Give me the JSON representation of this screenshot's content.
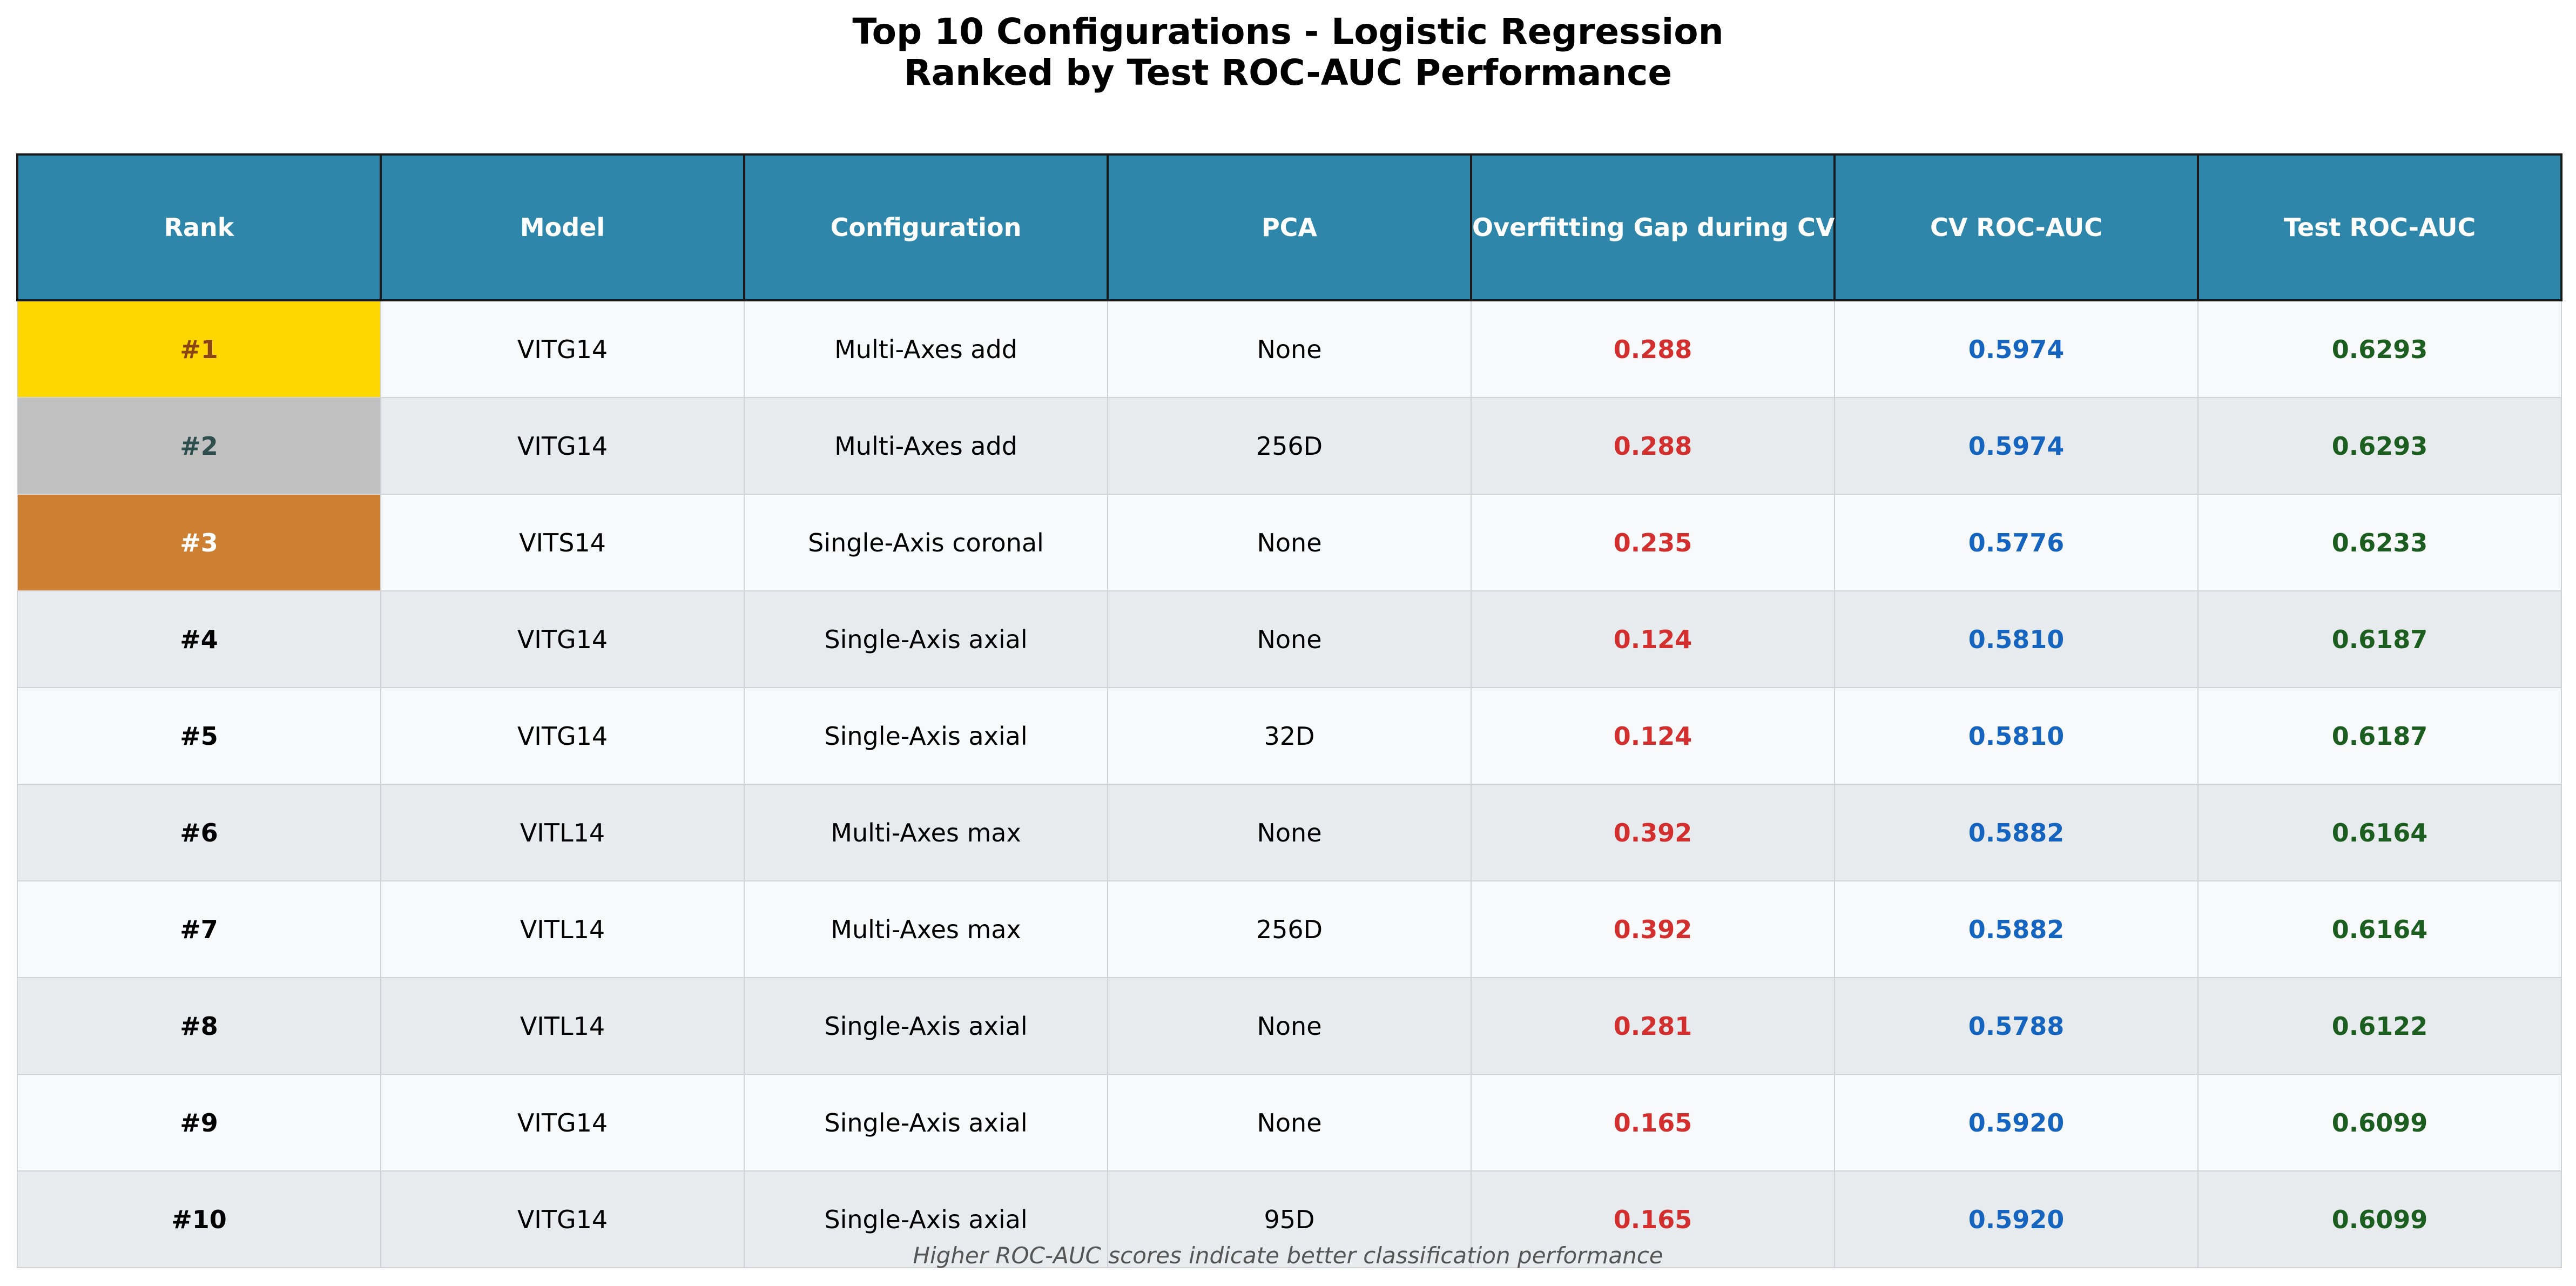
{
  "title": {
    "line1": "Top 10 Configurations - Logistic Regression",
    "line2": "Ranked by Test ROC-AUC Performance"
  },
  "colors": {
    "header_bg": "#2e86ab",
    "header_text": "#ffffff",
    "row_odd": "#f8f9fa",
    "row_even": "#e8ebed",
    "rank_gold": "#ffd700",
    "rank_gold_text": "#8b4513",
    "rank_silver": "#c0c0c0",
    "rank_silver_text": "#2f4f4f",
    "rank_bronze": "#cd7f32",
    "rank_bronze_text": "#ffffff",
    "gap_text": "#d32f2f",
    "cv_text": "#1565c0",
    "test_text": "#1b5e20"
  },
  "footnote": "Higher ROC-AUC scores indicate better classification performance",
  "chart_data": {
    "type": "table",
    "columns": [
      "Rank",
      "Model",
      "Configuration",
      "PCA",
      "Overfitting Gap during CV",
      "CV ROC-AUC",
      "Test ROC-AUC"
    ],
    "rows": [
      {
        "rank": "#1",
        "model": "VITG14",
        "configuration": "Multi-Axes add",
        "pca": "None",
        "gap": "0.288",
        "cv": "0.5974",
        "test": "0.6293"
      },
      {
        "rank": "#2",
        "model": "VITG14",
        "configuration": "Multi-Axes add",
        "pca": "256D",
        "gap": "0.288",
        "cv": "0.5974",
        "test": "0.6293"
      },
      {
        "rank": "#3",
        "model": "VITS14",
        "configuration": "Single-Axis coronal",
        "pca": "None",
        "gap": "0.235",
        "cv": "0.5776",
        "test": "0.6233"
      },
      {
        "rank": "#4",
        "model": "VITG14",
        "configuration": "Single-Axis axial",
        "pca": "None",
        "gap": "0.124",
        "cv": "0.5810",
        "test": "0.6187"
      },
      {
        "rank": "#5",
        "model": "VITG14",
        "configuration": "Single-Axis axial",
        "pca": "32D",
        "gap": "0.124",
        "cv": "0.5810",
        "test": "0.6187"
      },
      {
        "rank": "#6",
        "model": "VITL14",
        "configuration": "Multi-Axes max",
        "pca": "None",
        "gap": "0.392",
        "cv": "0.5882",
        "test": "0.6164"
      },
      {
        "rank": "#7",
        "model": "VITL14",
        "configuration": "Multi-Axes max",
        "pca": "256D",
        "gap": "0.392",
        "cv": "0.5882",
        "test": "0.6164"
      },
      {
        "rank": "#8",
        "model": "VITL14",
        "configuration": "Single-Axis axial",
        "pca": "None",
        "gap": "0.281",
        "cv": "0.5788",
        "test": "0.6122"
      },
      {
        "rank": "#9",
        "model": "VITG14",
        "configuration": "Single-Axis axial",
        "pca": "None",
        "gap": "0.165",
        "cv": "0.5920",
        "test": "0.6099"
      },
      {
        "rank": "#10",
        "model": "VITG14",
        "configuration": "Single-Axis axial",
        "pca": "95D",
        "gap": "0.165",
        "cv": "0.5920",
        "test": "0.6099"
      }
    ]
  }
}
